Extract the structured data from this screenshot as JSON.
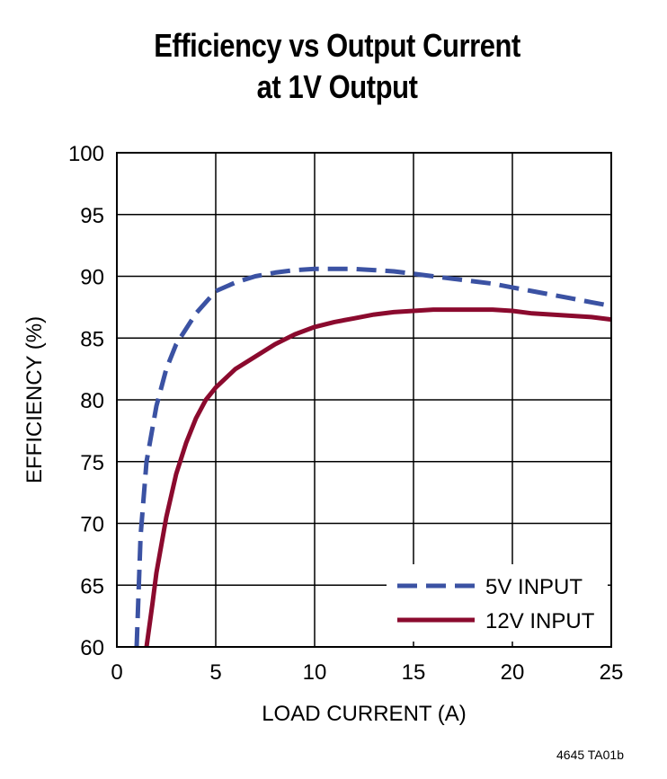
{
  "chart_data": {
    "type": "line",
    "title_line1": "Efficiency vs Output Current",
    "title_line2": "at 1V Output",
    "xlabel": "LOAD CURRENT (A)",
    "ylabel": "EFFICIENCY (%)",
    "xlim": [
      0,
      25
    ],
    "ylim": [
      60,
      100
    ],
    "xticks": [
      "0",
      "5",
      "10",
      "15",
      "20",
      "25"
    ],
    "yticks": [
      "60",
      "65",
      "70",
      "75",
      "80",
      "85",
      "90",
      "95",
      "100"
    ],
    "grid": true,
    "legend_placement": "bottom-right",
    "series": [
      {
        "name": "5V INPUT",
        "style": "dashed",
        "color": "#3b52a3",
        "x": [
          1.0,
          1.2,
          1.5,
          2.0,
          2.5,
          3.0,
          4.0,
          5.0,
          6.0,
          7.0,
          8.0,
          9.0,
          10.0,
          11.0,
          12.0,
          13.0,
          14.0,
          15.0,
          16.0,
          17.0,
          18.0,
          19.0,
          20.0,
          21.0,
          22.0,
          23.0,
          24.0,
          25.0
        ],
        "y": [
          60.0,
          69.0,
          75.0,
          79.5,
          82.5,
          84.5,
          87.0,
          88.8,
          89.5,
          90.0,
          90.3,
          90.5,
          90.6,
          90.6,
          90.6,
          90.5,
          90.4,
          90.2,
          90.0,
          89.8,
          89.6,
          89.4,
          89.1,
          88.8,
          88.5,
          88.2,
          87.9,
          87.6
        ]
      },
      {
        "name": "12V INPUT",
        "style": "solid",
        "color": "#8b0a2e",
        "x": [
          1.5,
          1.8,
          2.0,
          2.5,
          3.0,
          3.5,
          4.0,
          4.5,
          5.0,
          6.0,
          7.0,
          8.0,
          9.0,
          10.0,
          11.0,
          12.0,
          13.0,
          14.0,
          15.0,
          16.0,
          17.0,
          18.0,
          19.0,
          20.0,
          21.0,
          22.0,
          23.0,
          24.0,
          25.0
        ],
        "y": [
          60.0,
          63.5,
          66.0,
          70.5,
          74.0,
          76.5,
          78.5,
          80.0,
          81.0,
          82.5,
          83.5,
          84.5,
          85.3,
          85.9,
          86.3,
          86.6,
          86.9,
          87.1,
          87.2,
          87.3,
          87.3,
          87.3,
          87.3,
          87.2,
          87.0,
          86.9,
          86.8,
          86.7,
          86.5
        ]
      }
    ]
  },
  "figure_code": "4645 TA01b"
}
